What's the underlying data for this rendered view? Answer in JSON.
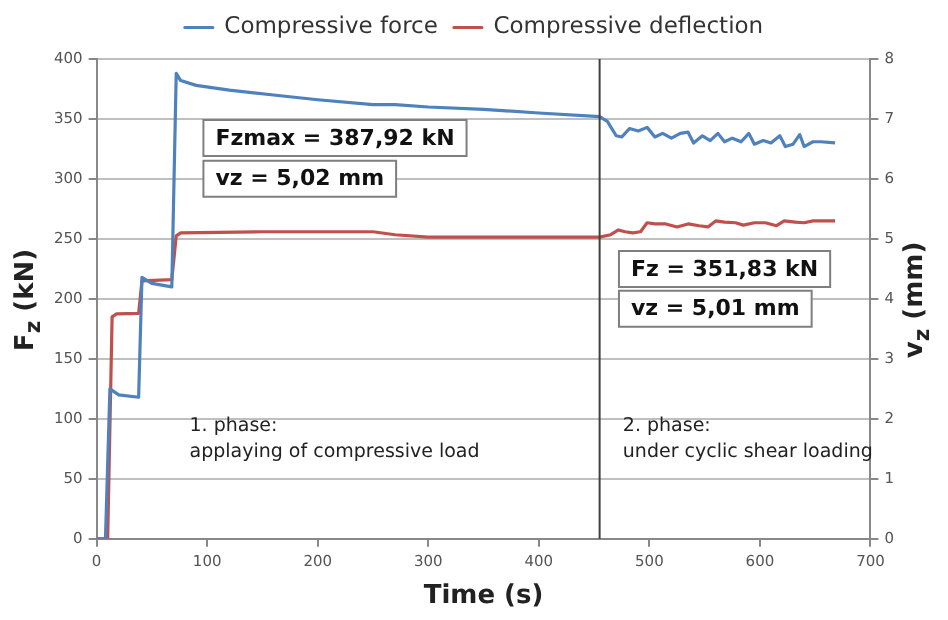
{
  "chart_data": {
    "type": "line",
    "xlabel": "Time (s)",
    "ylabel": "F$_{z}$ (kN)",
    "y2label": "v$_{z}$ (mm)",
    "xlim": [
      0,
      700
    ],
    "xticks": [
      0,
      100,
      200,
      300,
      400,
      500,
      600,
      700
    ],
    "ylim": [
      0,
      400
    ],
    "yticks": [
      0,
      50,
      100,
      150,
      200,
      250,
      300,
      350,
      400
    ],
    "y2lim": [
      0,
      8
    ],
    "y2ticks": [
      0,
      1,
      2,
      3,
      4,
      5,
      6,
      7,
      8
    ],
    "grid": "y",
    "legend": "top",
    "marker": "none",
    "line_style": "solid",
    "series": [
      {
        "name": "Compressive force",
        "color": "#4f81bd",
        "x": [
          0,
          8,
          12,
          20,
          38,
          41,
          50,
          68,
          72,
          76,
          90,
          120,
          160,
          200,
          250,
          270,
          300,
          350,
          400,
          455,
          462,
          470,
          475,
          482,
          490,
          498,
          505,
          512,
          520,
          528,
          535,
          540,
          548,
          555,
          562,
          568,
          575,
          583,
          590,
          595,
          603,
          610,
          618,
          623,
          630,
          636,
          640,
          648,
          655,
          668
        ],
        "values": [
          0,
          0,
          125,
          120,
          118,
          218,
          213,
          210,
          388,
          382,
          378,
          374,
          370,
          366,
          362,
          362,
          360,
          358,
          355,
          352,
          348,
          336,
          335,
          342,
          340,
          343,
          335,
          338,
          334,
          338,
          339,
          330,
          336,
          332,
          338,
          331,
          334,
          331,
          338,
          329,
          332,
          330,
          336,
          327,
          329,
          337,
          327,
          331,
          331,
          330
        ]
      },
      {
        "name": "Compressive deflection",
        "color": "#c0504d",
        "axis": "y2",
        "x": [
          0,
          10,
          14,
          18,
          38,
          41,
          68,
          72,
          76,
          150,
          250,
          270,
          300,
          455,
          465,
          472,
          478,
          485,
          492,
          498,
          505,
          515,
          525,
          535,
          545,
          553,
          560,
          568,
          578,
          585,
          595,
          605,
          615,
          622,
          632,
          640,
          648,
          668
        ],
        "values": [
          0,
          0,
          3.7,
          3.75,
          3.76,
          4.3,
          4.32,
          5.05,
          5.1,
          5.12,
          5.12,
          5.07,
          5.03,
          5.03,
          5.07,
          5.15,
          5.12,
          5.1,
          5.12,
          5.27,
          5.25,
          5.25,
          5.2,
          5.25,
          5.22,
          5.2,
          5.3,
          5.28,
          5.27,
          5.23,
          5.27,
          5.27,
          5.22,
          5.3,
          5.28,
          5.27,
          5.3,
          5.3
        ]
      }
    ],
    "ref_lines": [
      {
        "axis": "x",
        "value": 455,
        "color": "#404040"
      }
    ],
    "annotations": [
      "Fzmax = 387,92 kN",
      "vz = 5,02 mm",
      "Fz = 351,83 kN",
      "vz = 5,01 mm",
      "1. phase:\napplaying of compressive load",
      "2. phase:\nunder cyclic shear loading"
    ]
  }
}
